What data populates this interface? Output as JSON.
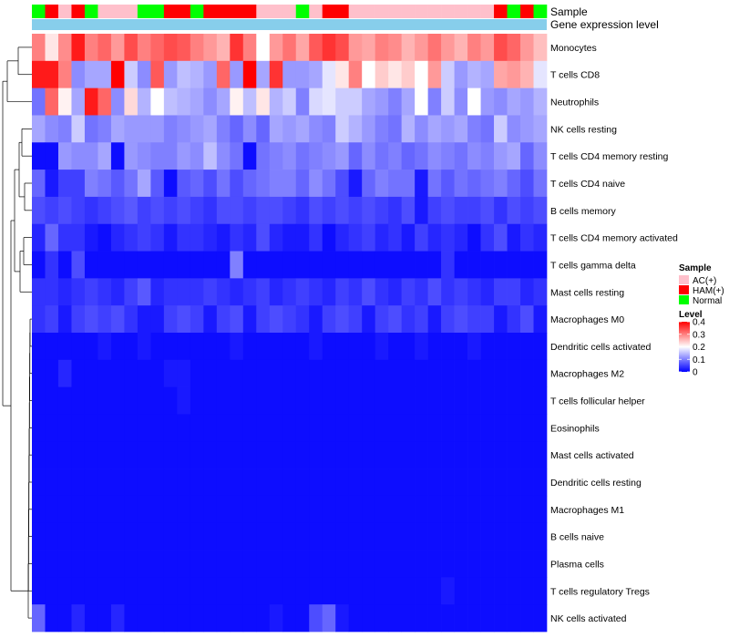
{
  "chart_data": {
    "type": "heatmap",
    "title": "",
    "annotation_tracks": [
      "Sample",
      "Gene expression level"
    ],
    "rows": [
      "Monocytes",
      "T cells CD8",
      "Neutrophils",
      "NK cells resting",
      "T cells CD4 memory resting",
      "T cells CD4 naive",
      "B cells memory",
      "T cells CD4 memory activated",
      "T cells gamma delta",
      "Mast cells resting",
      "Macrophages M0",
      "Dendritic cells activated",
      "Macrophages M2",
      "T cells follicular helper",
      "Eosinophils",
      "Mast cells activated",
      "Dendritic cells resting",
      "Macrophages M1",
      "B cells naive",
      "Plasma cells",
      "T cells regulatory  Tregs",
      "NK cells activated"
    ],
    "sample_groups": [
      "Normal",
      "HAM(+)",
      "AC(+)",
      "HAM(+)",
      "Normal",
      "AC(+)",
      "AC(+)",
      "AC(+)",
      "Normal",
      "Normal",
      "HAM(+)",
      "HAM(+)",
      "Normal",
      "HAM(+)",
      "HAM(+)",
      "HAM(+)",
      "HAM(+)",
      "AC(+)",
      "AC(+)",
      "AC(+)",
      "Normal",
      "AC(+)",
      "HAM(+)",
      "HAM(+)",
      "AC(+)",
      "AC(+)",
      "AC(+)",
      "AC(+)",
      "AC(+)",
      "AC(+)",
      "AC(+)",
      "AC(+)",
      "AC(+)",
      "AC(+)",
      "AC(+)",
      "HAM(+)",
      "Normal",
      "HAM(+)",
      "Normal"
    ],
    "values": [
      [
        0.3,
        0.22,
        0.29,
        0.38,
        0.3,
        0.32,
        0.28,
        0.34,
        0.3,
        0.32,
        0.34,
        0.33,
        0.3,
        0.28,
        0.26,
        0.36,
        0.3,
        0.2,
        0.28,
        0.31,
        0.27,
        0.33,
        0.36,
        0.34,
        0.28,
        0.27,
        0.3,
        0.29,
        0.26,
        0.28,
        0.31,
        0.28,
        0.26,
        0.3,
        0.28,
        0.34,
        0.32,
        0.28,
        0.25
      ],
      [
        0.38,
        0.38,
        0.3,
        0.11,
        0.13,
        0.13,
        0.4,
        0.16,
        0.11,
        0.33,
        0.12,
        0.15,
        0.14,
        0.12,
        0.32,
        0.12,
        0.4,
        0.13,
        0.36,
        0.12,
        0.12,
        0.13,
        0.18,
        0.22,
        0.3,
        0.2,
        0.24,
        0.22,
        0.24,
        0.2,
        0.28,
        0.16,
        0.12,
        0.14,
        0.13,
        0.27,
        0.28,
        0.26,
        0.18
      ],
      [
        0.09,
        0.32,
        0.21,
        0.13,
        0.38,
        0.32,
        0.11,
        0.23,
        0.14,
        0.2,
        0.15,
        0.14,
        0.13,
        0.11,
        0.13,
        0.21,
        0.15,
        0.22,
        0.14,
        0.16,
        0.1,
        0.17,
        0.18,
        0.16,
        0.16,
        0.13,
        0.12,
        0.1,
        0.13,
        0.2,
        0.1,
        0.16,
        0.11,
        0.2,
        0.12,
        0.11,
        0.13,
        0.12,
        0.14
      ],
      [
        0.13,
        0.11,
        0.1,
        0.16,
        0.09,
        0.1,
        0.13,
        0.12,
        0.12,
        0.12,
        0.1,
        0.11,
        0.12,
        0.13,
        0.1,
        0.08,
        0.11,
        0.08,
        0.13,
        0.12,
        0.13,
        0.11,
        0.1,
        0.16,
        0.14,
        0.12,
        0.1,
        0.09,
        0.14,
        0.11,
        0.13,
        0.12,
        0.13,
        0.1,
        0.09,
        0.16,
        0.11,
        0.12,
        0.13
      ],
      [
        0.01,
        0.01,
        0.12,
        0.11,
        0.11,
        0.13,
        0.01,
        0.12,
        0.11,
        0.1,
        0.1,
        0.12,
        0.11,
        0.15,
        0.11,
        0.09,
        0.01,
        0.09,
        0.1,
        0.11,
        0.09,
        0.1,
        0.11,
        0.12,
        0.08,
        0.11,
        0.09,
        0.1,
        0.08,
        0.09,
        0.11,
        0.1,
        0.09,
        0.11,
        0.1,
        0.12,
        0.13,
        0.08,
        0.11
      ],
      [
        0.08,
        0.02,
        0.05,
        0.05,
        0.1,
        0.09,
        0.07,
        0.09,
        0.13,
        0.07,
        0.01,
        0.07,
        0.08,
        0.06,
        0.09,
        0.06,
        0.08,
        0.09,
        0.1,
        0.1,
        0.08,
        0.11,
        0.09,
        0.06,
        0.02,
        0.08,
        0.1,
        0.09,
        0.09,
        0.02,
        0.09,
        0.07,
        0.09,
        0.08,
        0.09,
        0.1,
        0.08,
        0.06,
        0.09
      ],
      [
        0.06,
        0.05,
        0.06,
        0.05,
        0.04,
        0.05,
        0.06,
        0.07,
        0.05,
        0.06,
        0.05,
        0.06,
        0.05,
        0.04,
        0.06,
        0.06,
        0.05,
        0.06,
        0.06,
        0.05,
        0.04,
        0.06,
        0.05,
        0.06,
        0.05,
        0.06,
        0.05,
        0.04,
        0.06,
        0.02,
        0.05,
        0.06,
        0.05,
        0.05,
        0.06,
        0.04,
        0.06,
        0.05,
        0.06
      ],
      [
        0.03,
        0.08,
        0.04,
        0.04,
        0.02,
        0.01,
        0.03,
        0.04,
        0.05,
        0.04,
        0.02,
        0.04,
        0.04,
        0.03,
        0.02,
        0.04,
        0.03,
        0.06,
        0.03,
        0.02,
        0.02,
        0.04,
        0.01,
        0.03,
        0.04,
        0.05,
        0.03,
        0.04,
        0.02,
        0.05,
        0.03,
        0.04,
        0.03,
        0.01,
        0.04,
        0.06,
        0.02,
        0.04,
        0.03
      ],
      [
        0.01,
        0.04,
        0.01,
        0.06,
        0.01,
        0.01,
        0.01,
        0.01,
        0.01,
        0.01,
        0.01,
        0.01,
        0.01,
        0.01,
        0.01,
        0.1,
        0.01,
        0.01,
        0.01,
        0.01,
        0.01,
        0.01,
        0.01,
        0.01,
        0.01,
        0.01,
        0.01,
        0.01,
        0.01,
        0.01,
        0.01,
        0.04,
        0.01,
        0.01,
        0.01,
        0.01,
        0.01,
        0.01,
        0.01
      ],
      [
        0.04,
        0.04,
        0.03,
        0.04,
        0.05,
        0.04,
        0.03,
        0.05,
        0.07,
        0.03,
        0.04,
        0.04,
        0.04,
        0.05,
        0.04,
        0.03,
        0.04,
        0.05,
        0.03,
        0.04,
        0.05,
        0.04,
        0.03,
        0.05,
        0.04,
        0.06,
        0.04,
        0.03,
        0.05,
        0.04,
        0.06,
        0.04,
        0.05,
        0.04,
        0.03,
        0.05,
        0.05,
        0.03,
        0.04
      ],
      [
        0.04,
        0.05,
        0.02,
        0.05,
        0.06,
        0.05,
        0.06,
        0.04,
        0.02,
        0.02,
        0.05,
        0.06,
        0.05,
        0.02,
        0.05,
        0.06,
        0.02,
        0.05,
        0.06,
        0.05,
        0.04,
        0.02,
        0.05,
        0.06,
        0.05,
        0.02,
        0.05,
        0.06,
        0.04,
        0.05,
        0.02,
        0.05,
        0.06,
        0.05,
        0.05,
        0.02,
        0.04,
        0.06,
        0.02
      ],
      [
        0.01,
        0.01,
        0.01,
        0.01,
        0.01,
        0.02,
        0.01,
        0.01,
        0.02,
        0.01,
        0.01,
        0.01,
        0.01,
        0.01,
        0.01,
        0.02,
        0.01,
        0.01,
        0.01,
        0.01,
        0.01,
        0.02,
        0.01,
        0.01,
        0.01,
        0.01,
        0.02,
        0.01,
        0.01,
        0.02,
        0.01,
        0.01,
        0.01,
        0.02,
        0.01,
        0.01,
        0.01,
        0.01,
        0.01
      ],
      [
        0.01,
        0.01,
        0.03,
        0.01,
        0.01,
        0.01,
        0.01,
        0.01,
        0.01,
        0.01,
        0.02,
        0.02,
        0.01,
        0.01,
        0.01,
        0.01,
        0.01,
        0.01,
        0.01,
        0.01,
        0.01,
        0.01,
        0.01,
        0.01,
        0.01,
        0.01,
        0.01,
        0.01,
        0.01,
        0.01,
        0.01,
        0.01,
        0.01,
        0.01,
        0.01,
        0.01,
        0.01,
        0.01,
        0.01
      ],
      [
        0.01,
        0.01,
        0.01,
        0.01,
        0.01,
        0.01,
        0.01,
        0.01,
        0.01,
        0.01,
        0.01,
        0.02,
        0.01,
        0.01,
        0.01,
        0.01,
        0.01,
        0.01,
        0.01,
        0.01,
        0.01,
        0.01,
        0.01,
        0.01,
        0.01,
        0.01,
        0.01,
        0.01,
        0.01,
        0.01,
        0.01,
        0.01,
        0.01,
        0.01,
        0.01,
        0.01,
        0.01,
        0.01,
        0.01
      ],
      [
        0.01,
        0.01,
        0.01,
        0.01,
        0.01,
        0.01,
        0.01,
        0.01,
        0.01,
        0.01,
        0.01,
        0.01,
        0.01,
        0.01,
        0.01,
        0.01,
        0.01,
        0.01,
        0.01,
        0.01,
        0.01,
        0.01,
        0.01,
        0.01,
        0.01,
        0.01,
        0.01,
        0.01,
        0.01,
        0.01,
        0.01,
        0.01,
        0.01,
        0.01,
        0.01,
        0.01,
        0.01,
        0.01,
        0.01
      ],
      [
        0.01,
        0.01,
        0.01,
        0.01,
        0.01,
        0.01,
        0.01,
        0.01,
        0.01,
        0.01,
        0.01,
        0.01,
        0.01,
        0.01,
        0.01,
        0.01,
        0.01,
        0.01,
        0.01,
        0.01,
        0.01,
        0.01,
        0.01,
        0.01,
        0.01,
        0.01,
        0.01,
        0.01,
        0.01,
        0.01,
        0.01,
        0.01,
        0.01,
        0.01,
        0.01,
        0.01,
        0.01,
        0.01,
        0.01
      ],
      [
        0.01,
        0.01,
        0.01,
        0.01,
        0.01,
        0.01,
        0.01,
        0.01,
        0.01,
        0.01,
        0.01,
        0.01,
        0.01,
        0.01,
        0.01,
        0.01,
        0.01,
        0.01,
        0.01,
        0.01,
        0.01,
        0.01,
        0.01,
        0.01,
        0.01,
        0.01,
        0.01,
        0.01,
        0.01,
        0.01,
        0.01,
        0.01,
        0.01,
        0.01,
        0.01,
        0.01,
        0.01,
        0.01,
        0.01
      ],
      [
        0.01,
        0.01,
        0.01,
        0.01,
        0.01,
        0.01,
        0.01,
        0.01,
        0.01,
        0.01,
        0.01,
        0.01,
        0.01,
        0.01,
        0.01,
        0.01,
        0.01,
        0.01,
        0.01,
        0.01,
        0.01,
        0.01,
        0.01,
        0.01,
        0.01,
        0.01,
        0.01,
        0.01,
        0.01,
        0.01,
        0.01,
        0.01,
        0.01,
        0.01,
        0.01,
        0.01,
        0.01,
        0.01,
        0.01
      ],
      [
        0.01,
        0.01,
        0.01,
        0.01,
        0.01,
        0.01,
        0.01,
        0.01,
        0.01,
        0.01,
        0.01,
        0.01,
        0.01,
        0.01,
        0.01,
        0.01,
        0.01,
        0.01,
        0.01,
        0.01,
        0.01,
        0.01,
        0.01,
        0.01,
        0.01,
        0.01,
        0.01,
        0.01,
        0.01,
        0.01,
        0.01,
        0.01,
        0.01,
        0.01,
        0.01,
        0.01,
        0.01,
        0.01,
        0.01
      ],
      [
        0.01,
        0.01,
        0.01,
        0.01,
        0.01,
        0.01,
        0.01,
        0.01,
        0.01,
        0.01,
        0.01,
        0.01,
        0.01,
        0.01,
        0.01,
        0.01,
        0.01,
        0.01,
        0.01,
        0.01,
        0.01,
        0.01,
        0.01,
        0.01,
        0.01,
        0.01,
        0.01,
        0.01,
        0.01,
        0.01,
        0.01,
        0.01,
        0.01,
        0.01,
        0.01,
        0.01,
        0.01,
        0.01,
        0.01
      ],
      [
        0.01,
        0.01,
        0.01,
        0.01,
        0.01,
        0.01,
        0.01,
        0.01,
        0.01,
        0.01,
        0.01,
        0.01,
        0.01,
        0.01,
        0.01,
        0.01,
        0.01,
        0.01,
        0.01,
        0.01,
        0.01,
        0.01,
        0.01,
        0.01,
        0.01,
        0.01,
        0.01,
        0.01,
        0.01,
        0.01,
        0.01,
        0.02,
        0.01,
        0.01,
        0.01,
        0.01,
        0.01,
        0.01,
        0.01
      ],
      [
        0.08,
        0.01,
        0.01,
        0.03,
        0.01,
        0.01,
        0.03,
        0.01,
        0.01,
        0.01,
        0.01,
        0.01,
        0.01,
        0.01,
        0.01,
        0.01,
        0.01,
        0.01,
        0.02,
        0.01,
        0.01,
        0.06,
        0.08,
        0.02,
        0.01,
        0.01,
        0.01,
        0.01,
        0.01,
        0.01,
        0.01,
        0.01,
        0.01,
        0.01,
        0.01,
        0.01,
        0.01,
        0.01,
        0.01
      ]
    ],
    "color_scale": {
      "min": 0,
      "max": 0.4,
      "low": "#0000ff",
      "mid": "#ffffff",
      "high": "#ff0000",
      "mid_value": 0.2
    },
    "expression_track_color": "#87ceeb",
    "legends": {
      "sample": {
        "title": "Sample",
        "items": [
          {
            "label": "AC(+)",
            "color": "#ffc0cb"
          },
          {
            "label": "HAM(+)",
            "color": "#ff0000"
          },
          {
            "label": "Normal",
            "color": "#00ff00"
          }
        ]
      },
      "level": {
        "title": "Level",
        "ticks": [
          "0.4",
          "0.3",
          "0.2",
          "0.1",
          "0"
        ],
        "tick_values": [
          0.4,
          0.3,
          0.2,
          0.1,
          0
        ]
      }
    }
  }
}
